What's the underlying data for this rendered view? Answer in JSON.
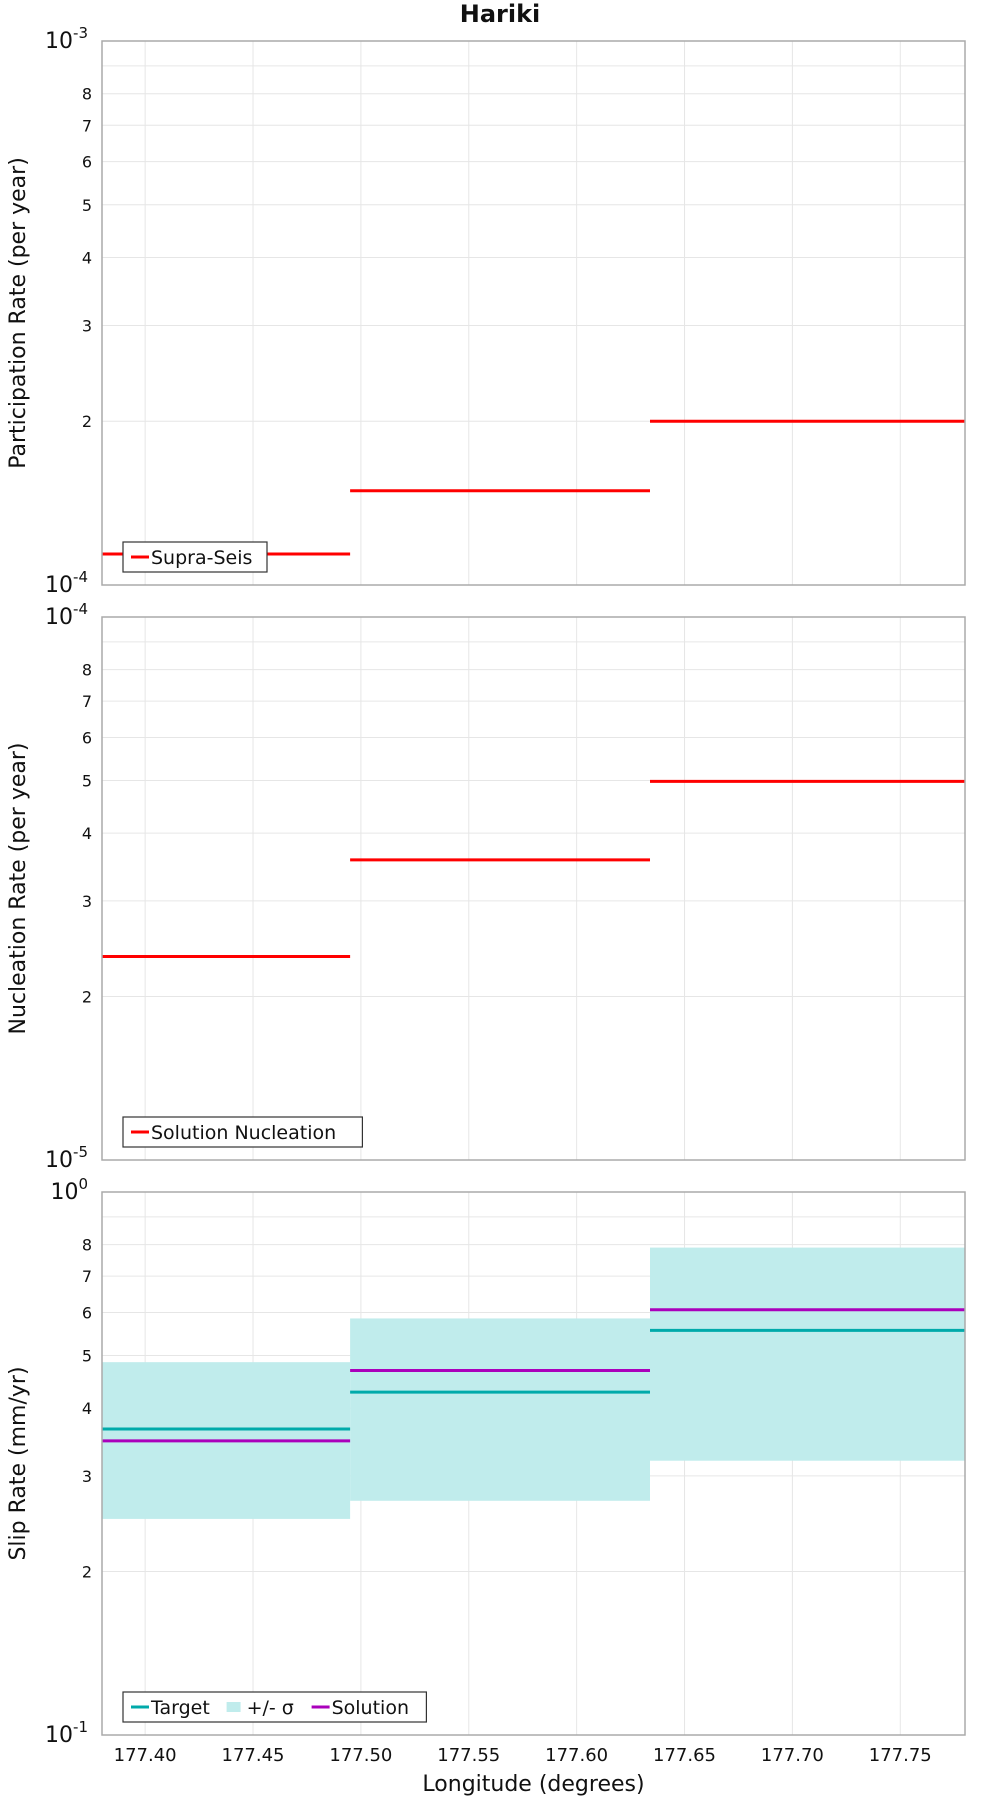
{
  "chart_data": [
    {
      "type": "step",
      "title": "Hariki",
      "xlabel": "",
      "ylabel": "Participation Rate (per year)",
      "xlim": [
        177.38,
        177.78
      ],
      "ylim": [
        0.0001,
        0.001
      ],
      "yscale": "log",
      "grid": true,
      "legend_position": "bottom-left",
      "series": [
        {
          "name": "Supra-Seis",
          "color": "#ff0000",
          "segments": [
            {
              "x": [
                177.38,
                177.495
              ],
              "y": 0.000114
            },
            {
              "x": [
                177.495,
                177.634
              ],
              "y": 0.000149
            },
            {
              "x": [
                177.634,
                177.78
              ],
              "y": 0.0002
            }
          ]
        }
      ]
    },
    {
      "type": "step",
      "xlabel": "",
      "ylabel": "Nucleation Rate (per year)",
      "xlim": [
        177.38,
        177.78
      ],
      "ylim": [
        1e-05,
        0.0001
      ],
      "yscale": "log",
      "grid": true,
      "legend_position": "bottom-left",
      "series": [
        {
          "name": "Solution Nucleation",
          "color": "#ff0000",
          "segments": [
            {
              "x": [
                177.38,
                177.495
              ],
              "y": 2.37e-05
            },
            {
              "x": [
                177.495,
                177.634
              ],
              "y": 3.57e-05
            },
            {
              "x": [
                177.634,
                177.78
              ],
              "y": 4.98e-05
            }
          ]
        }
      ]
    },
    {
      "type": "step",
      "xlabel": "Longitude (degrees)",
      "ylabel": "Slip Rate (mm/yr)",
      "xlim": [
        177.38,
        177.78
      ],
      "ylim": [
        0.1,
        1
      ],
      "yscale": "log",
      "grid": true,
      "legend_position": "bottom-left",
      "x_ticks": [
        177.4,
        177.45,
        177.5,
        177.55,
        177.6,
        177.65,
        177.7,
        177.75
      ],
      "series": [
        {
          "name": "Target",
          "color": "#00aaaa",
          "segments": [
            {
              "x": [
                177.38,
                177.495
              ],
              "y": 0.366
            },
            {
              "x": [
                177.495,
                177.634
              ],
              "y": 0.428
            },
            {
              "x": [
                177.634,
                177.78
              ],
              "y": 0.556
            }
          ]
        },
        {
          "name": "+/- σ",
          "color": "#c0ecec",
          "kind": "band",
          "segments": [
            {
              "x": [
                177.38,
                177.495
              ],
              "lo": 0.25,
              "hi": 0.486
            },
            {
              "x": [
                177.495,
                177.634
              ],
              "lo": 0.27,
              "hi": 0.585
            },
            {
              "x": [
                177.634,
                177.78
              ],
              "lo": 0.32,
              "hi": 0.79
            }
          ]
        },
        {
          "name": "Solution",
          "color": "#aa00bb",
          "segments": [
            {
              "x": [
                177.38,
                177.495
              ],
              "y": 0.348
            },
            {
              "x": [
                177.495,
                177.634
              ],
              "y": 0.469
            },
            {
              "x": [
                177.634,
                177.78
              ],
              "y": 0.607
            }
          ]
        }
      ]
    }
  ],
  "decade_labels": [
    {
      "base": "10",
      "exp": "-3"
    },
    {
      "base": "10",
      "exp": "-4"
    },
    {
      "base": "10",
      "exp": "-4"
    },
    {
      "base": "10",
      "exp": "-5"
    },
    {
      "base": "10",
      "exp": "0"
    },
    {
      "base": "10",
      "exp": "-1"
    }
  ],
  "minor_tick_labels": [
    "2",
    "3",
    "4",
    "5",
    "6",
    "7",
    "8"
  ]
}
